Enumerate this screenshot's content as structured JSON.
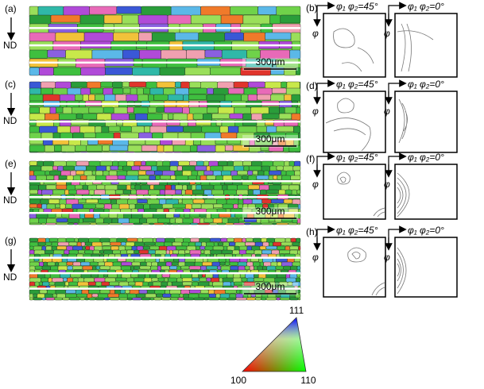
{
  "maps": [
    {
      "label": "(a)",
      "axis_label": "ND",
      "scale_bar": "300μm"
    },
    {
      "label": "(c)",
      "axis_label": "ND",
      "scale_bar": "300μm"
    },
    {
      "label": "(e)",
      "axis_label": "ND",
      "scale_bar": "300μm"
    },
    {
      "label": "(g)",
      "axis_label": "ND",
      "scale_bar": "300μm"
    }
  ],
  "odf_panels": [
    {
      "label": "(b)",
      "sections": [
        {
          "heading": "φ₁ φ₂=45°",
          "axis": "φ"
        },
        {
          "heading": "φ₁ φ₂=0°",
          "axis": "φ"
        }
      ]
    },
    {
      "label": "(d)",
      "sections": [
        {
          "heading": "φ₁ φ₂=45°",
          "axis": "φ"
        },
        {
          "heading": "φ₁ φ₂=0°",
          "axis": "φ"
        }
      ]
    },
    {
      "label": "(f)",
      "sections": [
        {
          "heading": "φ₁ φ₂=45°",
          "axis": "φ"
        },
        {
          "heading": "φ₁ φ₂=0°",
          "axis": "φ"
        }
      ]
    },
    {
      "label": "(h)",
      "sections": [
        {
          "heading": "φ₁ φ₂=45°",
          "axis": "φ"
        },
        {
          "heading": "φ₁ φ₂=0°",
          "axis": "φ"
        }
      ]
    }
  ],
  "color_key": {
    "top": "111",
    "left": "100",
    "right": "110"
  }
}
